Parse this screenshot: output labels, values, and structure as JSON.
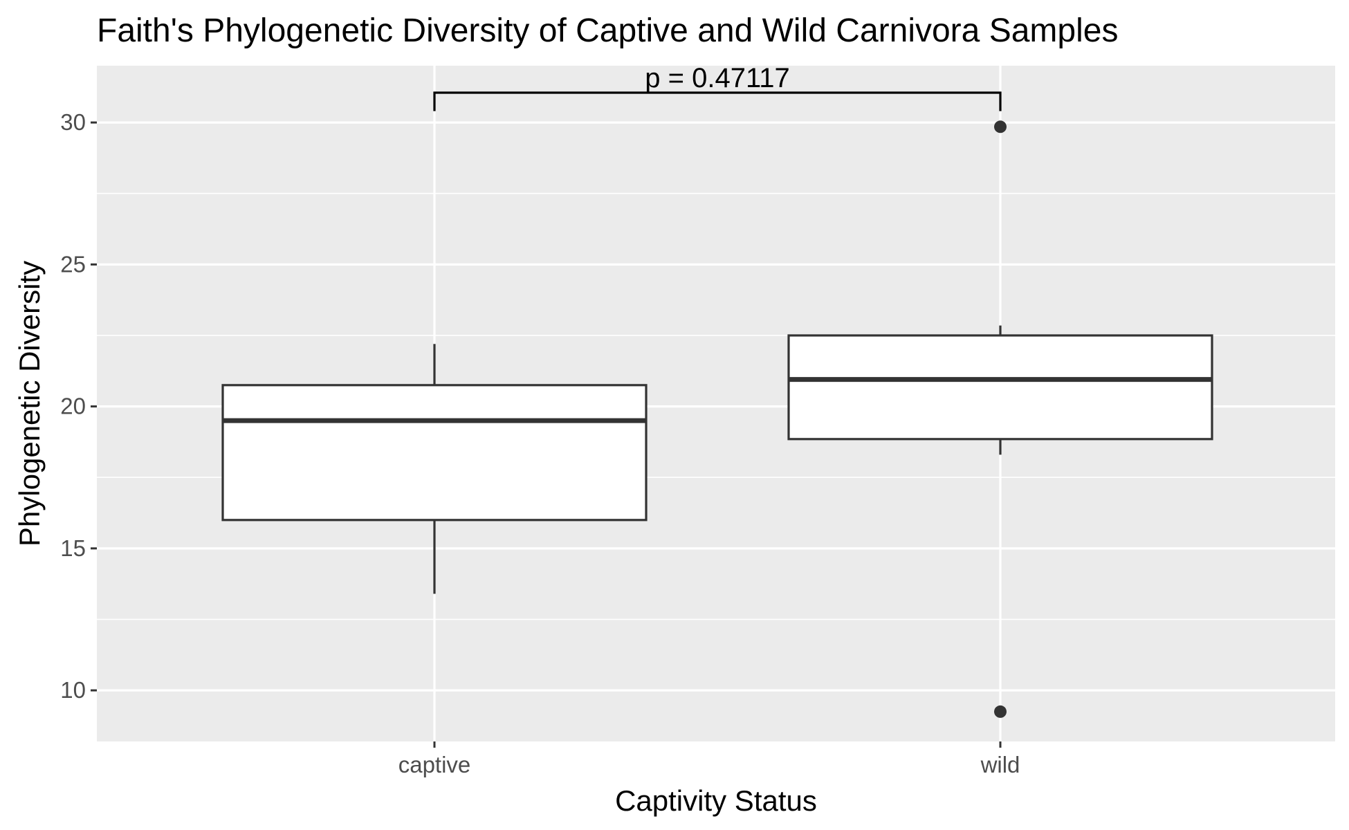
{
  "chart_data": {
    "type": "box",
    "title": "Faith's Phylogenetic Diversity of Captive and Wild Carnivora Samples",
    "xlabel": "Captivity Status",
    "ylabel": "Phylogenetic Diversity",
    "categories": [
      "captive",
      "wild"
    ],
    "ylim": [
      8.2,
      32.0
    ],
    "yticks": [
      10,
      15,
      20,
      25,
      30
    ],
    "grid": true,
    "boxes": [
      {
        "category": "captive",
        "whisker_low": 13.4,
        "q1": 16.0,
        "median": 19.5,
        "q3": 20.75,
        "whisker_high": 22.2,
        "outliers": []
      },
      {
        "category": "wild",
        "whisker_low": 18.3,
        "q1": 18.85,
        "median": 20.95,
        "q3": 22.5,
        "whisker_high": 22.85,
        "outliers": [
          29.85,
          9.25
        ]
      }
    ],
    "annotations": [
      {
        "text": "p = 0.47117",
        "from": "captive",
        "to": "wild",
        "y": 31.05,
        "tip_y": 30.4
      }
    ],
    "colors": {
      "panel": "#ebebeb",
      "grid": "#ffffff",
      "box_fill": "#ffffff",
      "box_line": "#333333",
      "tick": "#333333"
    }
  }
}
